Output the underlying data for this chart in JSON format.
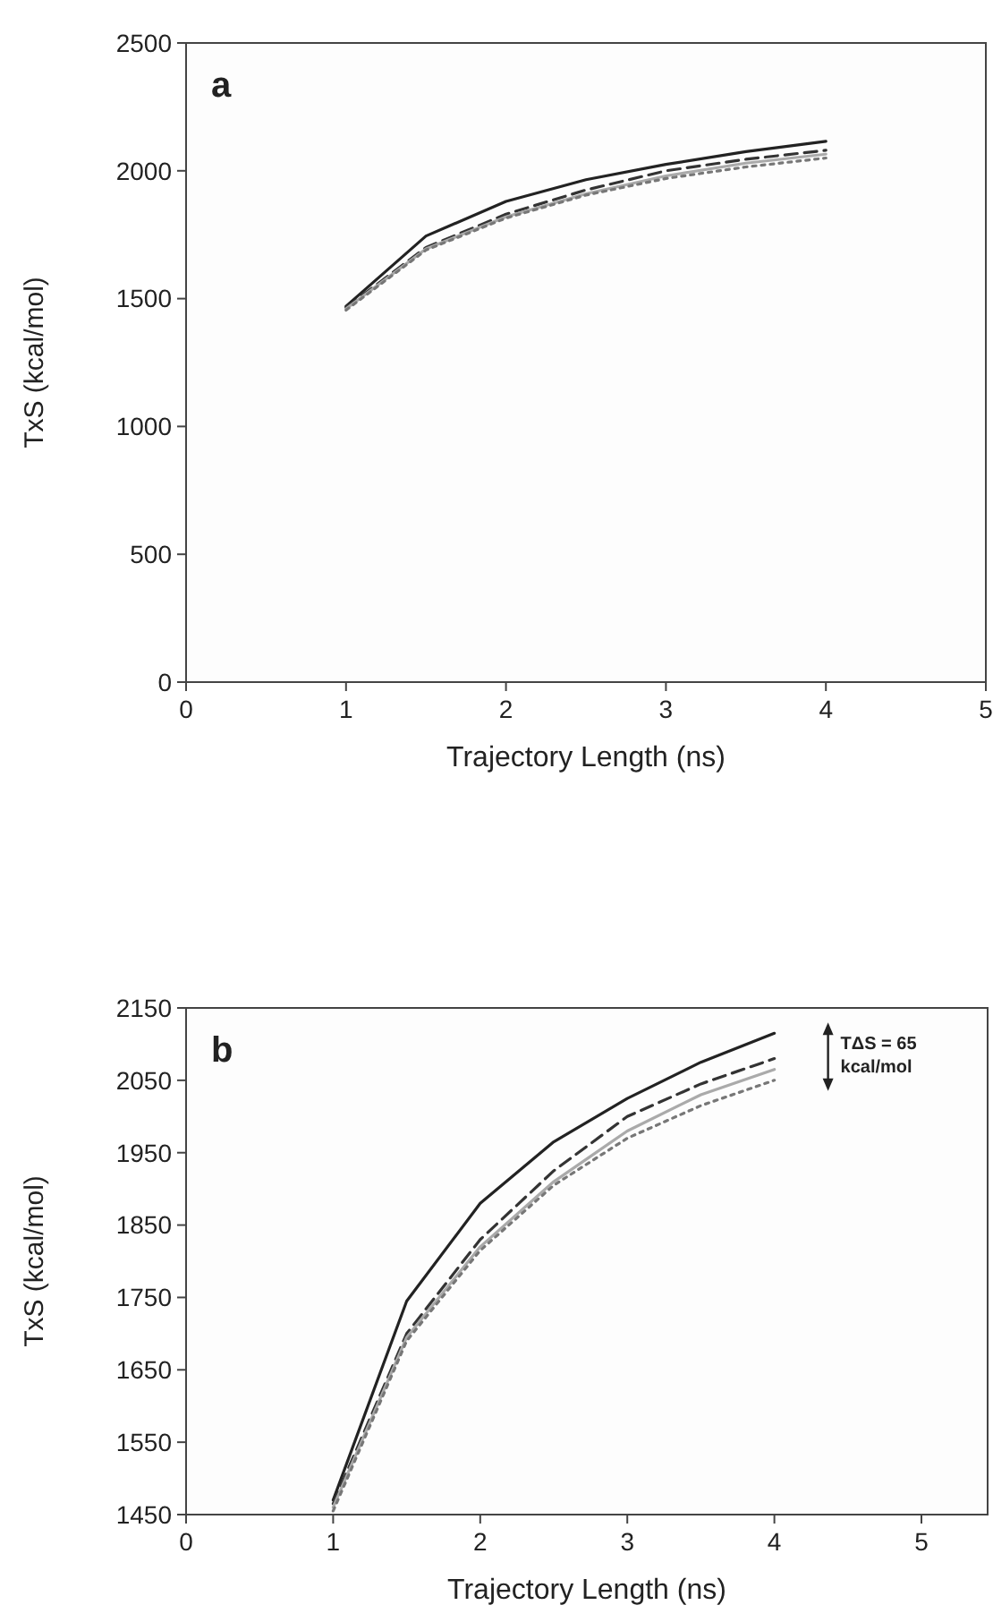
{
  "chart_data": [
    {
      "type": "line",
      "title": "a",
      "xlabel": "Trajectory Length (ns)",
      "ylabel": "TxS (kcal/mol)",
      "x": [
        1,
        1.5,
        2,
        2.5,
        3,
        3.5,
        4
      ],
      "xlim": [
        0,
        5
      ],
      "xticks": [
        0,
        1,
        2,
        3,
        4,
        5
      ],
      "ylim": [
        0,
        2500
      ],
      "yticks": [
        0,
        500,
        1000,
        1500,
        2000,
        2500
      ],
      "grid": false,
      "marker": "none",
      "series": [
        {
          "color": "#222222",
          "line_style": "solid",
          "values": [
            1470,
            1745,
            1880,
            1965,
            2025,
            2075,
            2115
          ]
        },
        {
          "color": "#333333",
          "line_style": "dashed",
          "values": [
            1465,
            1700,
            1830,
            1925,
            2000,
            2045,
            2080
          ]
        },
        {
          "color": "#aaaaaa",
          "line_style": "solid",
          "values": [
            1460,
            1695,
            1820,
            1910,
            1980,
            2030,
            2065
          ]
        },
        {
          "color": "#777777",
          "line_style": "dotted",
          "values": [
            1455,
            1690,
            1815,
            1905,
            1970,
            2015,
            2050
          ]
        }
      ]
    },
    {
      "type": "line",
      "title": "b",
      "xlabel": "Trajectory Length (ns)",
      "ylabel": "TxS (kcal/mol)",
      "x": [
        1,
        1.5,
        2,
        2.5,
        3,
        3.5,
        4
      ],
      "xlim": [
        0,
        5.45
      ],
      "xticks": [
        0,
        1,
        2,
        3,
        4,
        5
      ],
      "ylim": [
        1450,
        2150
      ],
      "yticks": [
        1450,
        1550,
        1650,
        1750,
        1850,
        1950,
        2050,
        2150
      ],
      "grid": false,
      "marker": "none",
      "annotations": [
        "TΔS = 65 kcal/mol"
      ],
      "series": [
        {
          "color": "#222222",
          "line_style": "solid",
          "values": [
            1470,
            1745,
            1880,
            1965,
            2025,
            2075,
            2115
          ]
        },
        {
          "color": "#333333",
          "line_style": "dashed",
          "values": [
            1465,
            1700,
            1830,
            1925,
            2000,
            2045,
            2080
          ]
        },
        {
          "color": "#aaaaaa",
          "line_style": "solid",
          "values": [
            1460,
            1695,
            1820,
            1910,
            1980,
            2030,
            2065
          ]
        },
        {
          "color": "#777777",
          "line_style": "dotted",
          "values": [
            1455,
            1690,
            1815,
            1905,
            1970,
            2015,
            2050
          ]
        }
      ]
    }
  ]
}
